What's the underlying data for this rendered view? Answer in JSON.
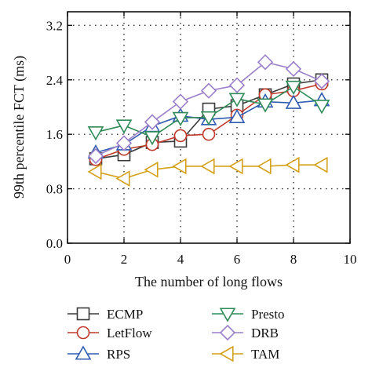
{
  "chart_data": {
    "type": "line",
    "xlabel": "The number of long flows",
    "ylabel": "99th percentile FCT (ms)",
    "xlim": [
      0,
      10
    ],
    "ylim": [
      0,
      3.4
    ],
    "xticks": [
      0,
      2,
      4,
      6,
      8,
      10
    ],
    "yticks": [
      0.0,
      0.8,
      1.6,
      2.4,
      3.2
    ],
    "xtick_labels": [
      "0",
      "2",
      "4",
      "6",
      "8",
      "10"
    ],
    "ytick_labels": [
      "0.0",
      "0.8",
      "1.6",
      "2.4",
      "3.2"
    ],
    "grid": "dotted",
    "legend_position": "below",
    "x": [
      1,
      2,
      3,
      4,
      5,
      6,
      7,
      8,
      9
    ],
    "series": [
      {
        "name": "ECMP",
        "color": "#3a3a3a",
        "marker": "square",
        "values": [
          1.24,
          1.3,
          1.48,
          1.5,
          1.97,
          2.02,
          2.18,
          2.34,
          2.4
        ]
      },
      {
        "name": "LetFlow",
        "color": "#c0392b",
        "marker": "circle",
        "values": [
          1.23,
          1.38,
          1.45,
          1.58,
          1.6,
          1.88,
          2.18,
          2.24,
          2.34
        ]
      },
      {
        "name": "RPS",
        "color": "#2f5cb0",
        "marker": "triangle-up",
        "values": [
          1.33,
          1.45,
          1.72,
          1.87,
          1.82,
          1.85,
          2.08,
          2.06,
          2.1
        ]
      },
      {
        "name": "Presto",
        "color": "#2e8b57",
        "marker": "triangle-down",
        "values": [
          1.63,
          1.73,
          1.56,
          1.84,
          1.85,
          2.12,
          2.04,
          2.3,
          2.02
        ]
      },
      {
        "name": "DRB",
        "color": "#9b7fc8",
        "marker": "diamond",
        "values": [
          1.28,
          1.47,
          1.78,
          2.08,
          2.24,
          2.32,
          2.66,
          2.56,
          2.38
        ]
      },
      {
        "name": "TAM",
        "color": "#d4a017",
        "marker": "triangle-left",
        "values": [
          1.05,
          0.95,
          1.08,
          1.13,
          1.13,
          1.13,
          1.13,
          1.15,
          1.15
        ]
      }
    ]
  }
}
